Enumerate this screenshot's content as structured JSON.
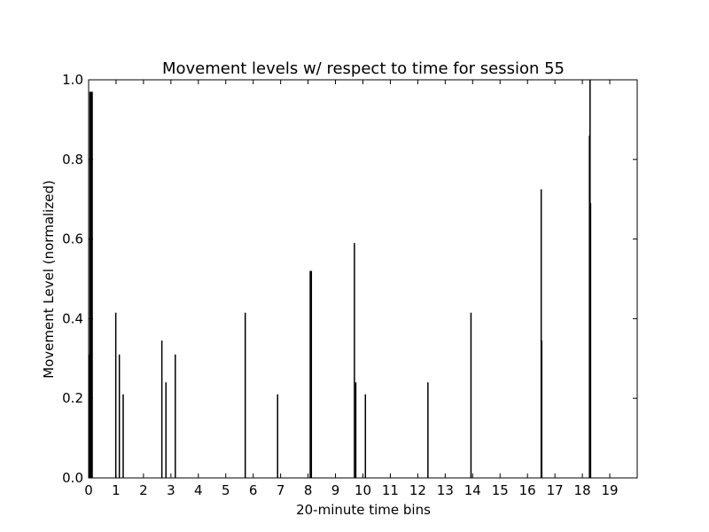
{
  "chart_data": {
    "type": "bar",
    "title": "Movement levels w/ respect to time for session 55",
    "xlabel": "20-minute time bins",
    "ylabel": "Movement Level (normalized)",
    "xlim": [
      0,
      20
    ],
    "ylim": [
      0,
      1.0
    ],
    "x_ticks": [
      0,
      1,
      2,
      3,
      4,
      5,
      6,
      7,
      8,
      9,
      10,
      11,
      12,
      13,
      14,
      15,
      16,
      17,
      18,
      19
    ],
    "x_tick_labels": [
      "0",
      "1",
      "2",
      "3",
      "4",
      "5",
      "6",
      "7",
      "8",
      "9",
      "10",
      "11",
      "12",
      "13",
      "14",
      "15",
      "16",
      "17",
      "18",
      "19"
    ],
    "y_ticks": [
      0.0,
      0.2,
      0.4,
      0.6,
      0.8,
      1.0
    ],
    "y_tick_labels": [
      "0.0",
      "0.2",
      "0.4",
      "0.6",
      "0.8",
      "1.0"
    ],
    "grid": false,
    "series": [
      {
        "color": "#000000",
        "points": [
          {
            "x": 0.02,
            "y": 0.31
          },
          {
            "x": 0.05,
            "y": 0.97
          },
          {
            "x": 0.07,
            "y": 0.96
          },
          {
            "x": 0.09,
            "y": 0.97
          },
          {
            "x": 0.11,
            "y": 0.96
          },
          {
            "x": 0.13,
            "y": 0.97
          },
          {
            "x": 0.99,
            "y": 0.415
          },
          {
            "x": 1.12,
            "y": 0.31
          },
          {
            "x": 1.26,
            "y": 0.21
          },
          {
            "x": 2.67,
            "y": 0.345
          },
          {
            "x": 2.82,
            "y": 0.24
          },
          {
            "x": 3.16,
            "y": 0.31
          },
          {
            "x": 5.71,
            "y": 0.415
          },
          {
            "x": 6.89,
            "y": 0.21
          },
          {
            "x": 8.08,
            "y": 0.52
          },
          {
            "x": 8.12,
            "y": 0.52
          },
          {
            "x": 9.69,
            "y": 0.59
          },
          {
            "x": 9.74,
            "y": 0.24
          },
          {
            "x": 10.09,
            "y": 0.21
          },
          {
            "x": 12.37,
            "y": 0.24
          },
          {
            "x": 13.94,
            "y": 0.415
          },
          {
            "x": 16.5,
            "y": 0.725
          },
          {
            "x": 16.52,
            "y": 0.345
          },
          {
            "x": 18.26,
            "y": 0.86
          },
          {
            "x": 18.28,
            "y": 1.0
          },
          {
            "x": 18.3,
            "y": 0.69
          }
        ]
      }
    ]
  }
}
